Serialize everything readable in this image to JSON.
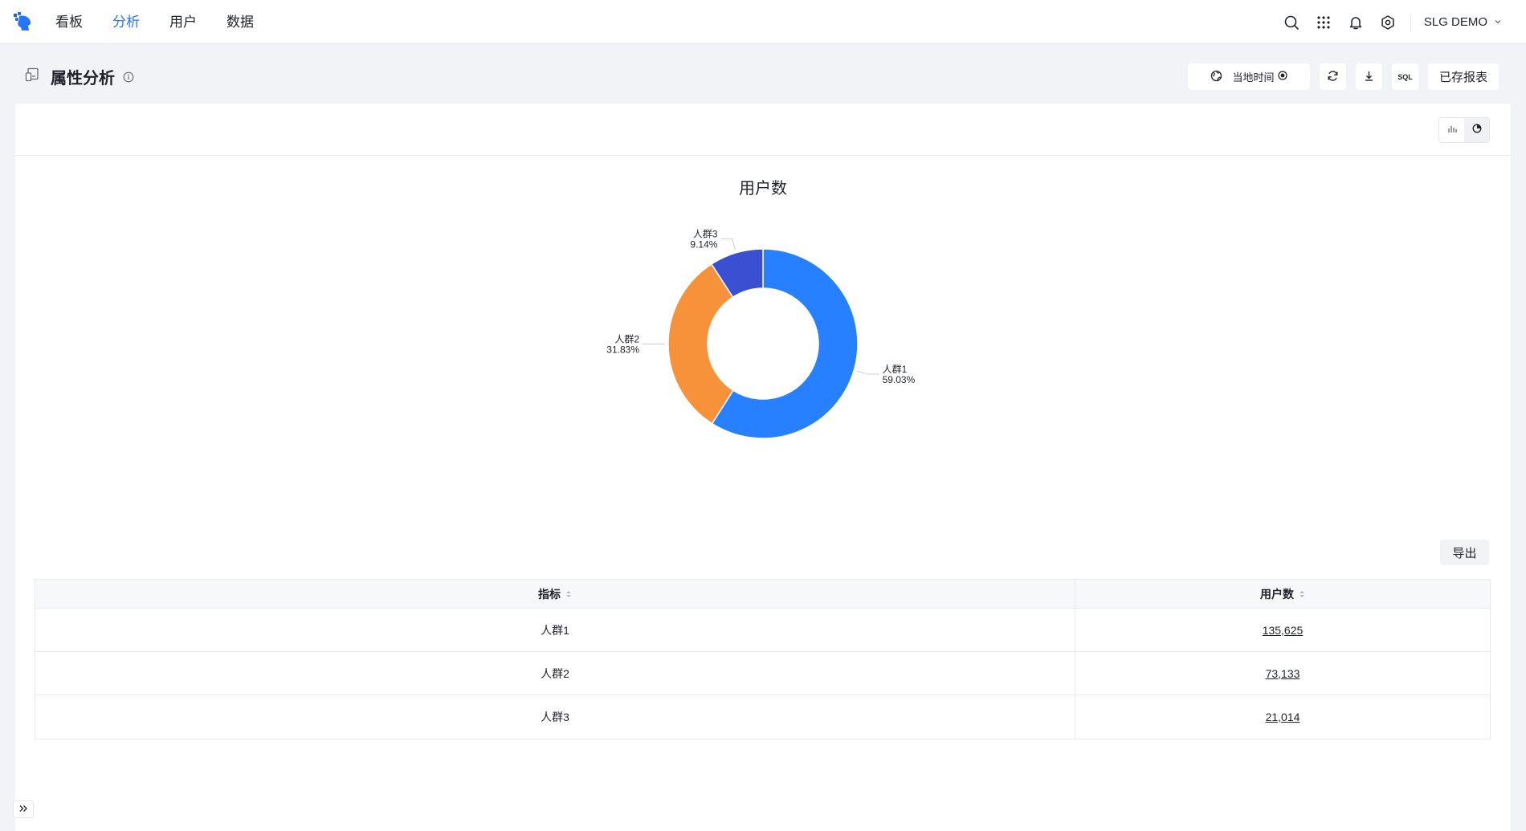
{
  "nav": {
    "items": [
      {
        "label": "看板",
        "active": false
      },
      {
        "label": "分析",
        "active": true
      },
      {
        "label": "用户",
        "active": false
      },
      {
        "label": "数据",
        "active": false
      }
    ],
    "user": "SLG DEMO"
  },
  "page": {
    "title": "属性分析",
    "actions": {
      "time_label": "当地时间",
      "sql_label": "SQL",
      "saved_reports_label": "已存报表"
    }
  },
  "chart_data": {
    "type": "pie",
    "donut": true,
    "title": "用户数",
    "slices": [
      {
        "label": "人群1",
        "value": 135625,
        "percent_label": "59.03%",
        "color": "#2680ff"
      },
      {
        "label": "人群2",
        "value": 73133,
        "percent_label": "31.83%",
        "color": "#f7923a"
      },
      {
        "label": "人群3",
        "value": 21014,
        "percent_label": "9.14%",
        "color": "#3a4fd1"
      }
    ]
  },
  "table": {
    "export_label": "导出",
    "columns": [
      "指标",
      "用户数"
    ],
    "rows": [
      {
        "metric": "人群1",
        "value": "135,625"
      },
      {
        "metric": "人群2",
        "value": "73,133"
      },
      {
        "metric": "人群3",
        "value": "21,014"
      }
    ]
  },
  "colors": {
    "accent": "#2575ff",
    "background": "#f2f3f7"
  }
}
